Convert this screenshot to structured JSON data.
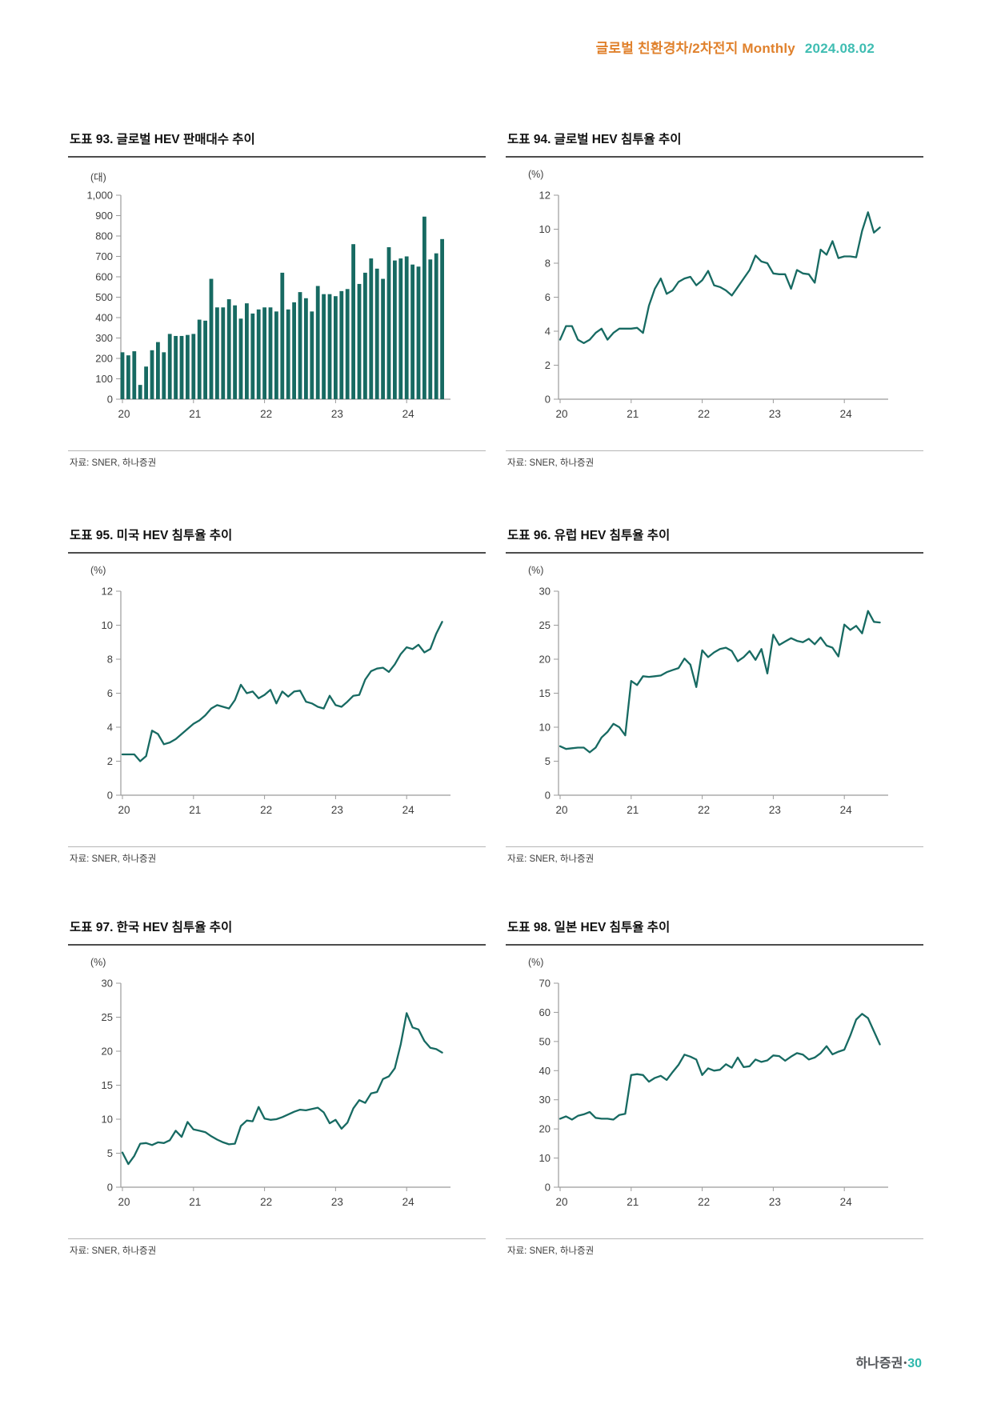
{
  "header": {
    "title": "글로벌 친환경차/2차전지 Monthly",
    "date": "2024.08.02"
  },
  "footer": {
    "brand": "하나증권",
    "separator": "•",
    "page_number": "30"
  },
  "colors": {
    "accent": "#176a62",
    "header_orange": "#e0812c",
    "header_teal": "#3fbdb2",
    "footer_brand": "#53565a",
    "footer_teal": "#2fb8ac",
    "axis": "#9b9b9b",
    "tick_text": "#3f3f3f"
  },
  "chart_data": [
    {
      "type": "bar",
      "title": "도표 93. 글로벌 HEV 판매대수 추이",
      "unit": "(대)",
      "source": "자료: SNER, 하나증권",
      "x_tick_labels": [
        "20",
        "21",
        "22",
        "23",
        "24"
      ],
      "ylim": [
        0,
        1000
      ],
      "y_step": 100,
      "y_tick_format": "comma",
      "legend": "none",
      "grid": false,
      "values": [
        230,
        215,
        235,
        70,
        160,
        240,
        280,
        230,
        320,
        310,
        310,
        315,
        320,
        390,
        385,
        590,
        450,
        450,
        490,
        460,
        395,
        470,
        420,
        440,
        450,
        450,
        430,
        620,
        440,
        475,
        525,
        495,
        430,
        555,
        515,
        515,
        505,
        530,
        540,
        760,
        565,
        620,
        690,
        640,
        590,
        745,
        680,
        690,
        700,
        660,
        650,
        895,
        685,
        715,
        785
      ]
    },
    {
      "type": "line",
      "title": "도표 94. 글로벌 HEV 침투율 추이",
      "unit": "(%)",
      "source": "자료: SNER, 하나증권",
      "x_tick_labels": [
        "20",
        "21",
        "22",
        "23",
        "24"
      ],
      "ylim": [
        0,
        12
      ],
      "y_step": 2,
      "y_tick_format": "int",
      "legend": "none",
      "grid": false,
      "values": [
        3.5,
        4.3,
        4.3,
        3.5,
        3.3,
        3.5,
        3.9,
        4.15,
        3.5,
        3.9,
        4.15,
        4.15,
        4.15,
        4.2,
        3.9,
        5.5,
        6.5,
        7.1,
        6.2,
        6.4,
        6.9,
        7.1,
        7.2,
        6.7,
        7.0,
        7.55,
        6.7,
        6.6,
        6.4,
        6.1,
        6.6,
        7.1,
        7.6,
        8.45,
        8.1,
        8.0,
        7.4,
        7.35,
        7.35,
        6.5,
        7.6,
        7.4,
        7.35,
        6.85,
        8.8,
        8.5,
        9.3,
        8.3,
        8.4,
        8.4,
        8.35,
        9.9,
        11.0,
        9.8,
        10.1
      ]
    },
    {
      "type": "line",
      "title": "도표 95. 미국 HEV 침투율 추이",
      "unit": "(%)",
      "source": "자료: SNER, 하나증권",
      "x_tick_labels": [
        "20",
        "21",
        "22",
        "23",
        "24"
      ],
      "ylim": [
        0,
        12
      ],
      "y_step": 2,
      "y_tick_format": "int",
      "legend": "none",
      "grid": false,
      "values": [
        2.4,
        2.4,
        2.4,
        2.0,
        2.3,
        3.8,
        3.6,
        3.0,
        3.1,
        3.3,
        3.6,
        3.9,
        4.2,
        4.4,
        4.7,
        5.1,
        5.3,
        5.2,
        5.1,
        5.6,
        6.5,
        6.0,
        6.1,
        5.7,
        5.9,
        6.2,
        5.4,
        6.1,
        5.8,
        6.1,
        6.15,
        5.5,
        5.4,
        5.2,
        5.1,
        5.85,
        5.3,
        5.2,
        5.5,
        5.85,
        5.9,
        6.8,
        7.3,
        7.45,
        7.5,
        7.25,
        7.7,
        8.3,
        8.7,
        8.6,
        8.85,
        8.4,
        8.6,
        9.5,
        10.2
      ]
    },
    {
      "type": "line",
      "title": "도표 96. 유럽 HEV 침투율 추이",
      "unit": "(%)",
      "source": "자료: SNER, 하나증권",
      "x_tick_labels": [
        "20",
        "21",
        "22",
        "23",
        "24"
      ],
      "ylim": [
        0,
        30
      ],
      "y_step": 5,
      "y_tick_format": "int",
      "legend": "none",
      "grid": false,
      "values": [
        7.2,
        6.8,
        6.9,
        7.0,
        7.0,
        6.3,
        7.0,
        8.5,
        9.3,
        10.5,
        10.0,
        8.8,
        16.8,
        16.2,
        17.5,
        17.4,
        17.5,
        17.6,
        18.1,
        18.4,
        18.7,
        20.1,
        19.2,
        15.9,
        21.3,
        20.3,
        21.0,
        21.5,
        21.7,
        21.2,
        19.7,
        20.3,
        21.2,
        19.9,
        21.5,
        17.9,
        23.6,
        22.1,
        22.6,
        23.1,
        22.7,
        22.5,
        23.0,
        22.2,
        23.2,
        22.0,
        21.7,
        20.4,
        25.1,
        24.3,
        24.9,
        23.8,
        27.1,
        25.5,
        25.4
      ]
    },
    {
      "type": "line",
      "title": "도표 97. 한국 HEV 침투율 추이",
      "unit": "(%)",
      "source": "자료: SNER, 하나증권",
      "x_tick_labels": [
        "20",
        "21",
        "22",
        "23",
        "24"
      ],
      "ylim": [
        0,
        30
      ],
      "y_step": 5,
      "y_tick_format": "int",
      "legend": "none",
      "grid": false,
      "values": [
        5.1,
        3.4,
        4.6,
        6.4,
        6.5,
        6.2,
        6.6,
        6.5,
        6.9,
        8.3,
        7.4,
        9.6,
        8.5,
        8.3,
        8.1,
        7.5,
        7.0,
        6.6,
        6.3,
        6.4,
        9.0,
        9.8,
        9.7,
        11.8,
        10.1,
        9.9,
        10.0,
        10.3,
        10.7,
        11.1,
        11.4,
        11.3,
        11.5,
        11.7,
        11.0,
        9.4,
        9.9,
        8.6,
        9.5,
        11.6,
        12.8,
        12.4,
        13.8,
        14.0,
        15.9,
        16.3,
        17.5,
        21.0,
        25.6,
        23.5,
        23.2,
        21.5,
        20.5,
        20.3,
        19.8
      ]
    },
    {
      "type": "line",
      "title": "도표 98. 일본 HEV 침투율 추이",
      "unit": "(%)",
      "source": "자료: SNER, 하나증권",
      "x_tick_labels": [
        "20",
        "21",
        "22",
        "23",
        "24"
      ],
      "ylim": [
        0,
        70
      ],
      "y_step": 10,
      "y_tick_format": "int",
      "legend": "none",
      "grid": false,
      "values": [
        23.5,
        24.3,
        23.2,
        24.5,
        25.0,
        25.8,
        23.8,
        23.5,
        23.5,
        23.2,
        24.8,
        25.2,
        38.5,
        38.8,
        38.5,
        36.2,
        37.5,
        38.2,
        36.8,
        39.5,
        42.0,
        45.5,
        44.8,
        43.8,
        38.5,
        40.8,
        40.0,
        40.3,
        42.2,
        41.0,
        44.5,
        41.2,
        41.5,
        43.8,
        43.0,
        43.5,
        45.2,
        45.0,
        43.4,
        44.8,
        46.0,
        45.5,
        43.8,
        44.5,
        46.0,
        48.4,
        45.6,
        46.5,
        47.2,
        52.0,
        57.5,
        59.5,
        58.0,
        53.5,
        49.0
      ]
    }
  ]
}
